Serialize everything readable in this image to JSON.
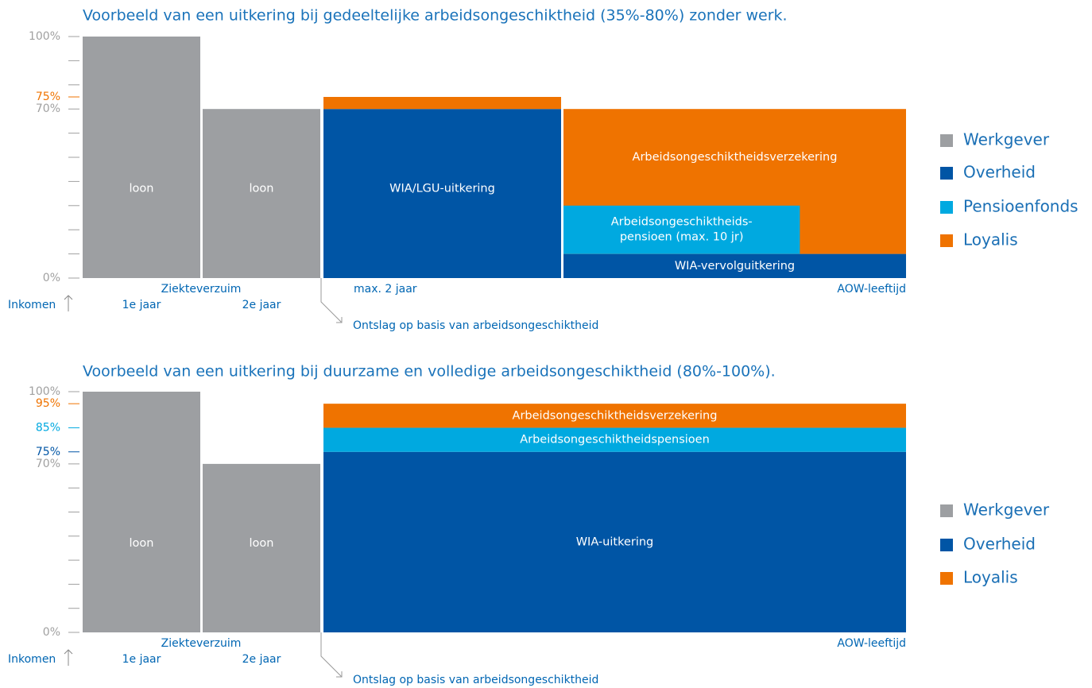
{
  "chart_data": [
    {
      "type": "block",
      "title": "Voorbeeld van een uitkering bij gedeeltelijke arbeidsongeschiktheid (35%-80%) zonder werk.",
      "ylim": [
        0,
        100
      ],
      "yticks": [
        {
          "value": 0,
          "label": "0%"
        },
        {
          "value": 70,
          "label": "70%"
        },
        {
          "value": 75,
          "label": "75%",
          "color": "#ef7300"
        },
        {
          "value": 100,
          "label": "100%"
        }
      ],
      "minor_yticks": [
        10,
        20,
        30,
        40,
        50,
        60,
        80,
        90
      ],
      "periods": [
        {
          "blocks": [
            {
              "label": [
                "loon"
              ],
              "bottom": 0,
              "top": 100,
              "color": "#9d9fa2"
            }
          ]
        },
        {
          "blocks": [
            {
              "label": [
                "loon"
              ],
              "bottom": 0,
              "top": 70,
              "color": "#9d9fa2"
            }
          ]
        },
        {
          "blocks": [
            {
              "label": [
                "WIA/LGU-uitkering"
              ],
              "bottom": 0,
              "top": 70,
              "color": "#0055a5"
            },
            {
              "bottom": 70,
              "top": 75,
              "color": "#ef7300"
            }
          ]
        },
        {
          "blocks": [
            {
              "label": [
                "WIA-vervolguitkering"
              ],
              "bottom": 0,
              "top": 10,
              "color": "#0055a5"
            },
            {
              "label": [
                "Arbeidsongeschiktheidsverzekering"
              ],
              "bottom": 10,
              "top": 70,
              "color": "#ef7300"
            },
            {
              "label": [
                "Arbeidsongeschiktheids-",
                "pensioen (max. 10 jr)"
              ],
              "bottom": 10,
              "top": 30,
              "color": "#00a9e0"
            }
          ]
        }
      ],
      "legend": [
        {
          "name": "Werkgever",
          "color": "#9d9fa2"
        },
        {
          "name": "Overheid",
          "color": "#0055a5"
        },
        {
          "name": "Pensioenfonds",
          "color": "#00a9e0"
        },
        {
          "name": "Loyalis",
          "color": "#ef7300"
        }
      ],
      "annotations": {
        "group": "Ziekteverzuim",
        "period_labels": [
          "1e jaar",
          "2e jaar"
        ],
        "start": "max. 2 jaar",
        "end": "AOW-leeftijd",
        "axis": "Inkomen",
        "event": "Ontslag op basis van arbeidsongeschiktheid"
      }
    },
    {
      "type": "block",
      "title": "Voorbeeld van een uitkering bij duurzame en volledige arbeidsongeschiktheid (80%-100%).",
      "ylim": [
        0,
        100
      ],
      "yticks": [
        {
          "value": 0,
          "label": "0%"
        },
        {
          "value": 70,
          "label": "70%"
        },
        {
          "value": 75,
          "label": "75%",
          "color": "#0055a5"
        },
        {
          "value": 85,
          "label": "85%",
          "color": "#00a9e0"
        },
        {
          "value": 95,
          "label": "95%",
          "color": "#ef7300"
        },
        {
          "value": 100,
          "label": "100%"
        }
      ],
      "minor_yticks": [
        10,
        20,
        30,
        40,
        50,
        60
      ],
      "periods": [
        {
          "blocks": [
            {
              "label": [
                "loon"
              ],
              "bottom": 0,
              "top": 100,
              "color": "#9d9fa2"
            }
          ]
        },
        {
          "blocks": [
            {
              "label": [
                "loon"
              ],
              "bottom": 0,
              "top": 70,
              "color": "#9d9fa2"
            }
          ]
        },
        {
          "blocks": [
            {
              "label": [
                "WIA-uitkering"
              ],
              "bottom": 0,
              "top": 75,
              "color": "#0055a5"
            },
            {
              "label": [
                "Arbeidsongeschiktheidspensioen"
              ],
              "bottom": 75,
              "top": 85,
              "color": "#00a9e0"
            },
            {
              "label": [
                "Arbeidsongeschiktheidsverzekering"
              ],
              "bottom": 85,
              "top": 95,
              "color": "#ef7300"
            }
          ]
        }
      ],
      "legend": [
        {
          "name": "Werkgever",
          "color": "#9d9fa2"
        },
        {
          "name": "Overheid",
          "color": "#0055a5"
        },
        {
          "name": "Loyalis",
          "color": "#ef7300"
        }
      ],
      "annotations": {
        "group": "Ziekteverzuim",
        "period_labels": [
          "1e jaar",
          "2e jaar"
        ],
        "end": "AOW-leeftijd",
        "axis": "Inkomen",
        "event": "Ontslag op basis van arbeidsongeschiktheid"
      }
    }
  ]
}
